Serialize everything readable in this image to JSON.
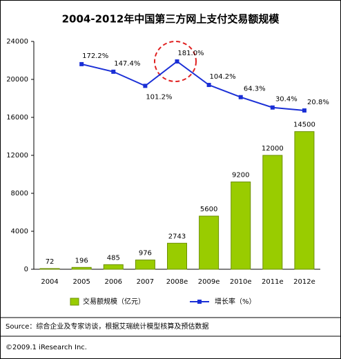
{
  "chart_data": {
    "type": "bar",
    "title": "2004-2012年中国第三方网上支付交易额规模",
    "categories": [
      "2004",
      "2005",
      "2006",
      "2007",
      "2008e",
      "2009e",
      "2010e",
      "2011e",
      "2012e"
    ],
    "series": [
      {
        "name": "交易额规模（亿元）",
        "type": "bar",
        "color": "#99cc00",
        "values": [
          72,
          196,
          485,
          976,
          2743,
          5600,
          9200,
          12000,
          14500
        ]
      },
      {
        "name": "增长率（%）",
        "type": "line",
        "axis": "y2",
        "color": "#1a2fd6",
        "values": [
          null,
          172.2,
          147.4,
          101.2,
          181.0,
          104.2,
          64.3,
          30.4,
          20.8
        ],
        "value_labels": [
          null,
          "172.2%",
          "147.4%",
          "101.2%",
          "181.0%",
          "104.2%",
          "64.3%",
          "30.4%",
          "20.8%"
        ]
      }
    ],
    "ylim": [
      0,
      24000
    ],
    "yticks": [
      0,
      4000,
      8000,
      12000,
      16000,
      20000,
      24000
    ],
    "source": "Source：综合企业及专家访谈，根据艾瑞统计模型核算及预估数据",
    "copyright": "©2009.1 iResearch Inc."
  }
}
